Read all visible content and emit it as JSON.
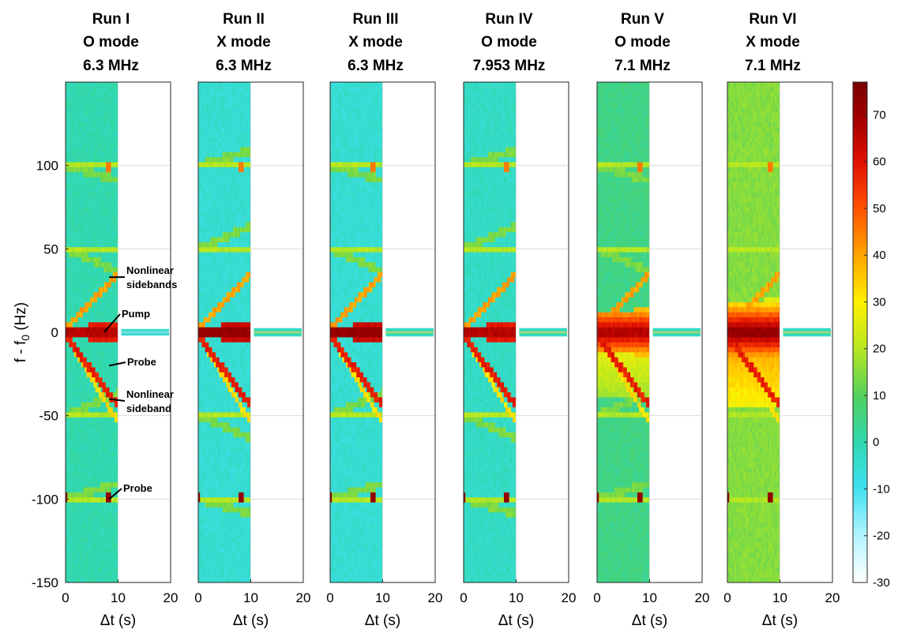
{
  "chart_data": {
    "type": "heatmap",
    "ylabel": "f - f0 (Hz)",
    "ylabel_main": "f - f",
    "ylabel_sub": "0",
    "ylabel_unit": " (Hz)",
    "xlabel": "Δt (s)",
    "xlim": [
      0,
      20
    ],
    "ylim": [
      -150,
      150
    ],
    "xticks": [
      "0",
      "10",
      "20"
    ],
    "yticks": [
      "100",
      "50",
      "0",
      "-50",
      "-100",
      "-150"
    ],
    "colorbar": {
      "min": -30,
      "max": 77,
      "ticks": [
        "70",
        "60",
        "50",
        "40",
        "30",
        "20",
        "10",
        "0",
        "-10",
        "-20",
        "-30"
      ]
    },
    "panels": [
      {
        "title_run": "Run I",
        "title_mode": "O mode",
        "title_freq": "6.3 MHz",
        "background_level": 0,
        "pump_level": 70
      },
      {
        "title_run": "Run II",
        "title_mode": "X mode",
        "title_freq": "6.3 MHz",
        "background_level": -5,
        "pump_level": 75
      },
      {
        "title_run": "Run III",
        "title_mode": "X mode",
        "title_freq": "6.3 MHz",
        "background_level": -5,
        "pump_level": 75
      },
      {
        "title_run": "Run IV",
        "title_mode": "O mode",
        "title_freq": "7.953 MHz",
        "background_level": -3,
        "pump_level": 70
      },
      {
        "title_run": "Run V",
        "title_mode": "O mode",
        "title_freq": "7.1 MHz",
        "background_level": 5,
        "pump_level": 70
      },
      {
        "title_run": "Run VI",
        "title_mode": "X mode",
        "title_freq": "7.1 MHz",
        "background_level": 15,
        "pump_level": 75
      }
    ],
    "annotations": [
      {
        "line1": "Nonlinear",
        "line2": "sidebands",
        "dt": 8,
        "freq": 33
      },
      {
        "line1": "Pump",
        "line2": "",
        "dt": 7,
        "freq": 0
      },
      {
        "line1": "Probe",
        "line2": "",
        "dt": 8,
        "freq": -20
      },
      {
        "line1": "Nonlinear",
        "line2": "sideband",
        "dt": 8,
        "freq": -40
      },
      {
        "line1": "Probe",
        "line2": "",
        "dt": 8,
        "freq": -100
      }
    ]
  }
}
